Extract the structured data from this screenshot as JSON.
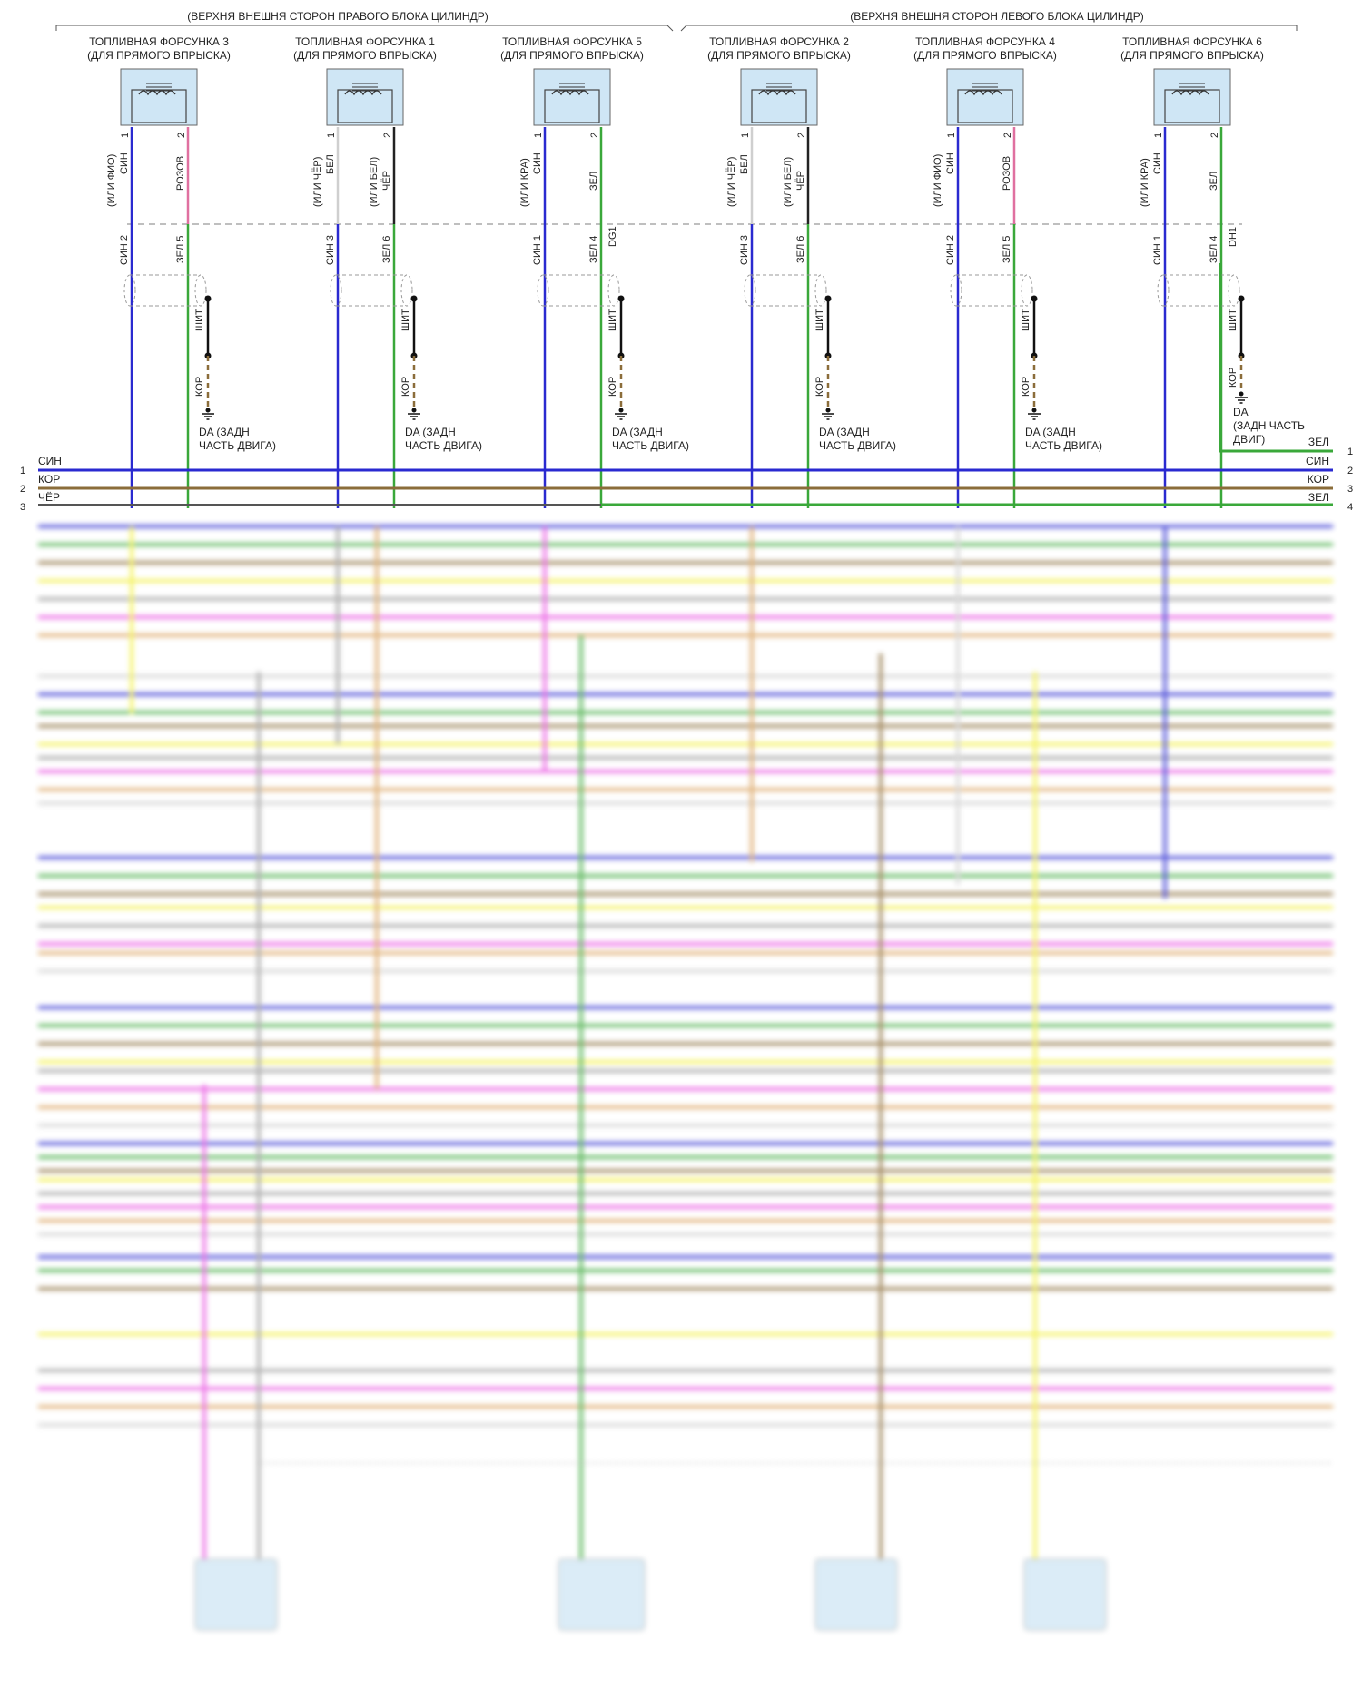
{
  "groups": {
    "right": "(ВЕРХНЯ ВНЕШНЯ СТОРОН ПРАВОГО БЛОКА ЦИЛИНДР)",
    "left": "(ВЕРХНЯ ВНЕШНЯ СТОРОН ЛЕВОГО БЛОКА ЦИЛИНДР)"
  },
  "injectors": [
    {
      "title": "ТОПЛИВНАЯ ФОРСУНКА 3",
      "subtitle": "(ДЛЯ ПРЯМОГО ВПРЫСКА)",
      "p1": {
        "num": "1",
        "color": "СИН",
        "alt": "(ИЛИ ФИО)"
      },
      "p2": {
        "num": "2",
        "color": "РОЗОВ",
        "alt": ""
      },
      "c1": "СИН 2",
      "c2": "ЗЕЛ 5",
      "code": ""
    },
    {
      "title": "ТОПЛИВНАЯ ФОРСУНКА 1",
      "subtitle": "(ДЛЯ ПРЯМОГО ВПРЫСКА)",
      "p1": {
        "num": "1",
        "color": "БЕЛ",
        "alt": "(ИЛИ ЧЁР)"
      },
      "p2": {
        "num": "2",
        "color": "ЧЁР",
        "alt": "(ИЛИ БЕЛ)"
      },
      "c1": "СИН 3",
      "c2": "ЗЕЛ 6",
      "code": ""
    },
    {
      "title": "ТОПЛИВНАЯ ФОРСУНКА 5",
      "subtitle": "(ДЛЯ ПРЯМОГО ВПРЫСКА)",
      "p1": {
        "num": "1",
        "color": "СИН",
        "alt": "(ИЛИ КРА)"
      },
      "p2": {
        "num": "2",
        "color": "ЗЕЛ",
        "alt": ""
      },
      "c1": "СИН 1",
      "c2": "ЗЕЛ 4",
      "code": "DG1"
    },
    {
      "title": "ТОПЛИВНАЯ ФОРСУНКА 2",
      "subtitle": "(ДЛЯ ПРЯМОГО ВПРЫСКА)",
      "p1": {
        "num": "1",
        "color": "БЕЛ",
        "alt": "(ИЛИ ЧЁР)"
      },
      "p2": {
        "num": "2",
        "color": "ЧЁР",
        "alt": "(ИЛИ БЕЛ)"
      },
      "c1": "СИН 3",
      "c2": "ЗЕЛ 6",
      "code": ""
    },
    {
      "title": "ТОПЛИВНАЯ ФОРСУНКА 4",
      "subtitle": "(ДЛЯ ПРЯМОГО ВПРЫСКА)",
      "p1": {
        "num": "1",
        "color": "СИН",
        "alt": "(ИЛИ ФИО)"
      },
      "p2": {
        "num": "2",
        "color": "РОЗОВ",
        "alt": ""
      },
      "c1": "СИН 2",
      "c2": "ЗЕЛ 5",
      "code": ""
    },
    {
      "title": "ТОПЛИВНАЯ ФОРСУНКА 6",
      "subtitle": "(ДЛЯ ПРЯМОГО ВПРЫСКА)",
      "p1": {
        "num": "1",
        "color": "СИН",
        "alt": "(ИЛИ КРА)"
      },
      "p2": {
        "num": "2",
        "color": "ЗЕЛ",
        "alt": ""
      },
      "c1": "СИН 1",
      "c2": "ЗЕЛ 4",
      "code": "DH1"
    }
  ],
  "shield_label": "ШИТ",
  "ground_wire": "КОР",
  "ground_labels": [
    [
      "DA (ЗАДН",
      "ЧАСТЬ ДВИГА)"
    ],
    [
      "DA (ЗАДН",
      "ЧАСТЬ ДВИГА)"
    ],
    [
      "DA (ЗАДН",
      "ЧАСТЬ ДВИГА)"
    ],
    [
      "DA (ЗАДН",
      "ЧАСТЬ ДВИГА)"
    ],
    [
      "DA (ЗАДН",
      "ЧАСТЬ ДВИГА)"
    ],
    [
      "DA",
      "(ЗАДН ЧАСТЬ",
      "ДВИГ)"
    ]
  ],
  "left_bus": [
    {
      "num": "1",
      "label": "СИН"
    },
    {
      "num": "2",
      "label": "КОР"
    },
    {
      "num": "3",
      "label": "ЧЁР"
    }
  ],
  "right_bus": [
    {
      "num": "1",
      "label": "ЗЕЛ"
    },
    {
      "num": "2",
      "label": "СИН"
    },
    {
      "num": "3",
      "label": "КОР"
    },
    {
      "num": "4",
      "label": "ЗЕЛ"
    }
  ],
  "colors": {
    "blue": "#2a2ad0",
    "green": "#3aa83a",
    "brown": "#8b6d3a",
    "pink": "#e070a0",
    "white": "#cfcfcf",
    "black": "#222222",
    "yellow": "#f2ef3c",
    "magenta": "#e84be0",
    "gray": "#9a9a9a",
    "orange": "#d9a05a",
    "frame": "#555555"
  }
}
